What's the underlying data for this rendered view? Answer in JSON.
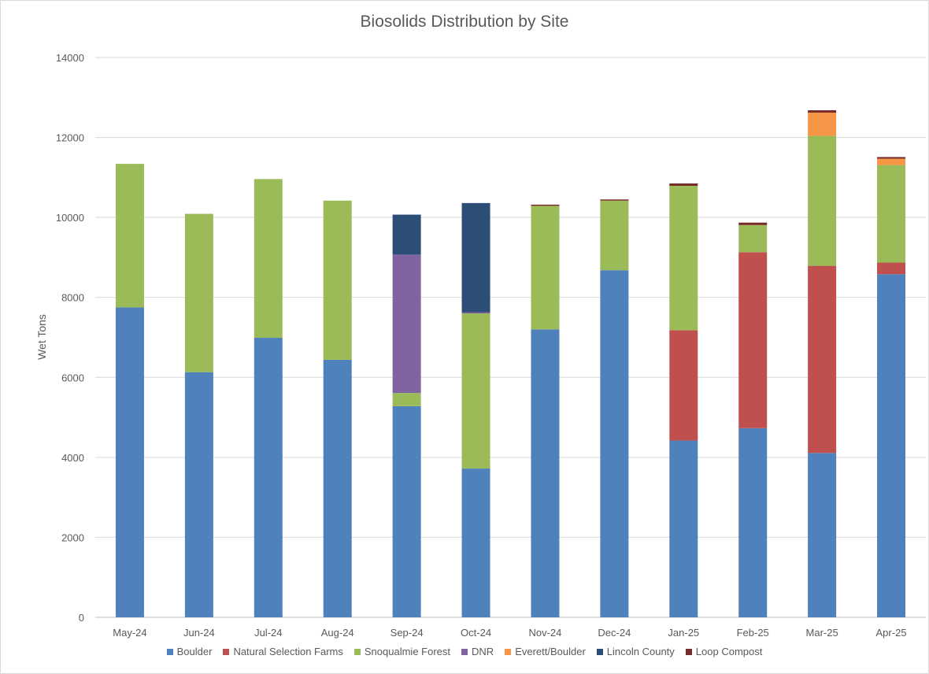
{
  "chart_data": {
    "type": "bar",
    "stacked": true,
    "title": "Biosolids Distribution by Site",
    "xlabel": "",
    "ylabel": "Wet Tons",
    "ylim": [
      0,
      14000
    ],
    "yticks": [
      0,
      2000,
      4000,
      6000,
      8000,
      10000,
      12000,
      14000
    ],
    "grid": true,
    "legend_position": "bottom",
    "categories": [
      "May-24",
      "Jun-24",
      "Jul-24",
      "Aug-24",
      "Sep-24",
      "Oct-24",
      "Nov-24",
      "Dec-24",
      "Jan-25",
      "Feb-25",
      "Mar-25",
      "Apr-25"
    ],
    "series": [
      {
        "name": "Boulder",
        "color": "#4f81bd",
        "values": [
          7750,
          6130,
          6990,
          6440,
          5280,
          3720,
          7200,
          8680,
          4420,
          4730,
          4110,
          8580
        ]
      },
      {
        "name": "Natural Selection Farms",
        "color": "#c0504d",
        "values": [
          0,
          0,
          0,
          0,
          0,
          0,
          0,
          0,
          2760,
          4400,
          4680,
          290
        ]
      },
      {
        "name": "Snoqualmie Forest",
        "color": "#9bbb59",
        "values": [
          3590,
          3960,
          3970,
          3980,
          330,
          3880,
          3090,
          1740,
          3610,
          680,
          3250,
          2440
        ]
      },
      {
        "name": "DNR",
        "color": "#8064a2",
        "values": [
          0,
          0,
          0,
          0,
          3460,
          30,
          0,
          0,
          0,
          0,
          0,
          0
        ]
      },
      {
        "name": "Everett/Boulder",
        "color": "#f79646",
        "values": [
          0,
          0,
          0,
          0,
          0,
          0,
          0,
          0,
          0,
          0,
          580,
          160
        ]
      },
      {
        "name": "Lincoln County",
        "color": "#2c4d75",
        "values": [
          0,
          0,
          0,
          0,
          1000,
          2730,
          0,
          0,
          0,
          0,
          0,
          0
        ]
      },
      {
        "name": "Loop Compost",
        "color": "#772c2a",
        "values": [
          0,
          0,
          0,
          0,
          0,
          0,
          30,
          30,
          60,
          60,
          60,
          40
        ]
      }
    ]
  }
}
